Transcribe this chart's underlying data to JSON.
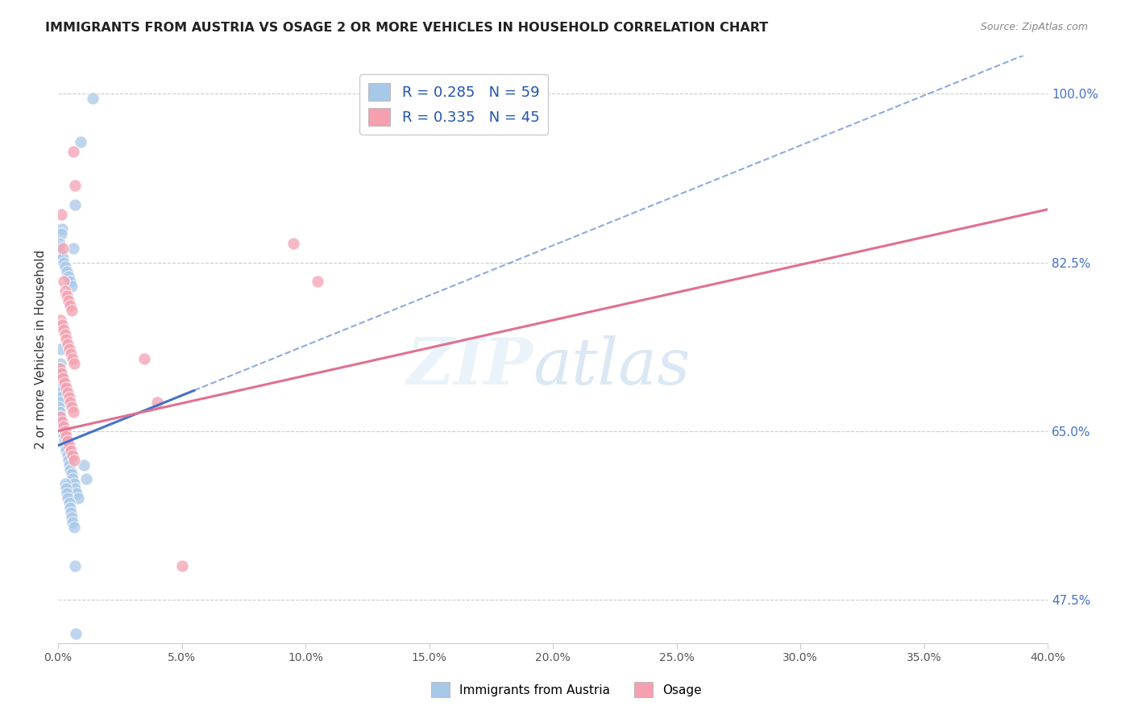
{
  "title": "IMMIGRANTS FROM AUSTRIA VS OSAGE 2 OR MORE VEHICLES IN HOUSEHOLD CORRELATION CHART",
  "source": "Source: ZipAtlas.com",
  "ylabel": "2 or more Vehicles in Household",
  "y_ticks": [
    47.5,
    65.0,
    82.5,
    100.0
  ],
  "y_tick_labels": [
    "47.5%",
    "65.0%",
    "82.5%",
    "100.0%"
  ],
  "xlim": [
    0.0,
    40.0
  ],
  "ylim": [
    43.0,
    104.0
  ],
  "legend_label1": "Immigrants from Austria",
  "legend_label2": "Osage",
  "R1": 0.285,
  "N1": 59,
  "R2": 0.335,
  "N2": 45,
  "color_blue": "#a8c8e8",
  "color_pink": "#f4a0b0",
  "color_blue_line": "#4472c4",
  "color_pink_line": "#e07090",
  "blue_line_x0": 0.0,
  "blue_line_y0": 63.5,
  "blue_line_x1": 40.0,
  "blue_line_y1": 105.0,
  "blue_solid_x0": 0.0,
  "blue_solid_x1": 5.5,
  "pink_line_x0": 0.0,
  "pink_line_y0": 65.0,
  "pink_line_x1": 40.0,
  "pink_line_y1": 88.0,
  "blue_scatter_x": [
    1.4,
    0.9,
    0.7,
    0.15,
    0.12,
    0.08,
    0.05,
    0.18,
    0.22,
    0.28,
    0.35,
    0.42,
    0.48,
    0.55,
    0.62,
    0.1,
    0.1,
    0.08,
    0.12,
    0.15,
    0.18,
    0.1,
    0.08,
    0.06,
    0.05,
    0.04,
    0.08,
    0.06,
    0.1,
    0.14,
    0.18,
    0.22,
    0.26,
    0.3,
    0.34,
    0.38,
    0.42,
    0.46,
    0.5,
    0.55,
    0.6,
    0.65,
    0.7,
    0.75,
    0.8,
    1.05,
    1.15,
    0.28,
    0.32,
    0.36,
    0.4,
    0.44,
    0.48,
    0.52,
    0.56,
    0.6,
    0.64,
    0.68,
    0.72
  ],
  "blue_scatter_y": [
    99.5,
    95.0,
    88.5,
    86.0,
    85.5,
    84.5,
    83.5,
    83.0,
    82.5,
    82.0,
    81.5,
    81.0,
    80.5,
    80.0,
    84.0,
    73.5,
    72.0,
    71.5,
    71.0,
    70.5,
    70.0,
    69.5,
    69.0,
    68.5,
    68.0,
    67.5,
    67.0,
    66.5,
    66.0,
    65.5,
    65.0,
    64.5,
    64.0,
    63.5,
    63.0,
    62.5,
    62.0,
    61.5,
    61.0,
    60.5,
    60.0,
    59.5,
    59.0,
    58.5,
    58.0,
    61.5,
    60.0,
    59.5,
    59.0,
    58.5,
    58.0,
    57.5,
    57.0,
    56.5,
    56.0,
    55.5,
    55.0,
    51.0,
    44.0
  ],
  "pink_scatter_x": [
    0.12,
    0.18,
    0.24,
    0.3,
    0.36,
    0.42,
    0.48,
    0.55,
    0.62,
    0.7,
    0.1,
    0.16,
    0.22,
    0.28,
    0.34,
    0.4,
    0.46,
    0.52,
    0.58,
    0.64,
    0.08,
    0.14,
    0.2,
    0.26,
    0.32,
    0.38,
    0.44,
    0.5,
    0.56,
    0.62,
    0.1,
    0.16,
    0.22,
    0.28,
    0.34,
    0.4,
    0.46,
    0.52,
    0.58,
    0.64,
    3.5,
    4.0,
    9.5,
    10.5,
    5.0
  ],
  "pink_scatter_y": [
    87.5,
    84.0,
    80.5,
    79.5,
    79.0,
    78.5,
    78.0,
    77.5,
    94.0,
    90.5,
    76.5,
    76.0,
    75.5,
    75.0,
    74.5,
    74.0,
    73.5,
    73.0,
    72.5,
    72.0,
    71.5,
    71.0,
    70.5,
    70.0,
    69.5,
    69.0,
    68.5,
    68.0,
    67.5,
    67.0,
    66.5,
    66.0,
    65.5,
    65.0,
    64.5,
    64.0,
    63.5,
    63.0,
    62.5,
    62.0,
    72.5,
    68.0,
    84.5,
    80.5,
    51.0
  ]
}
